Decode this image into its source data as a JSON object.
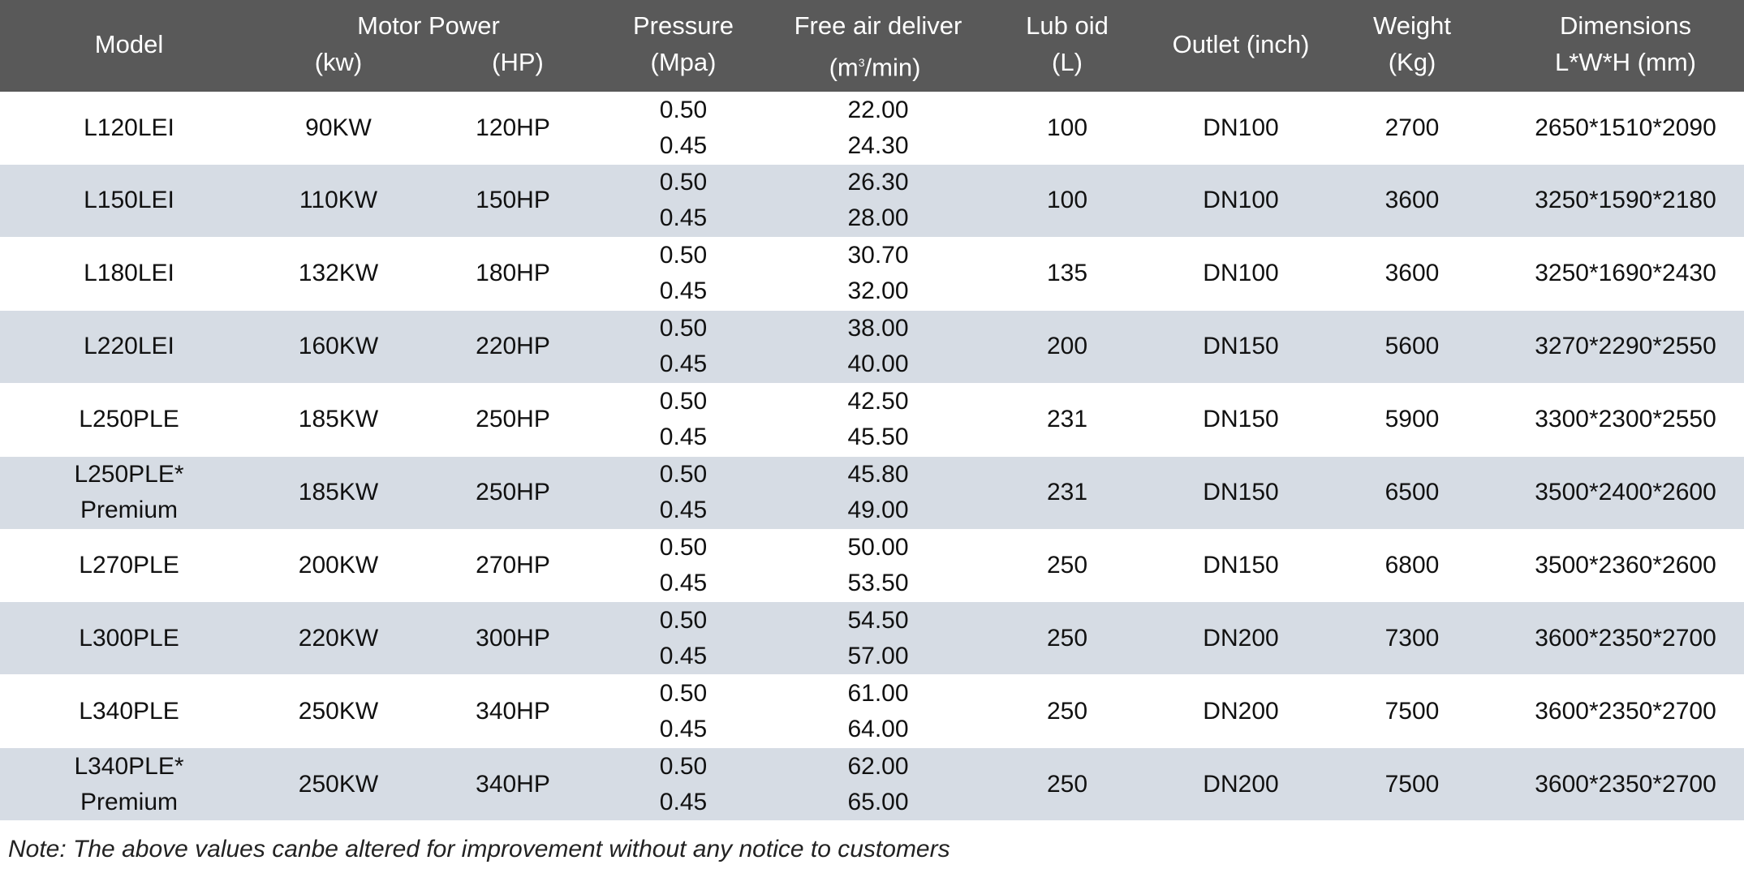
{
  "header": {
    "model": "Model",
    "motor_power": "Motor Power",
    "kw": "(kw)",
    "hp": "(HP)",
    "pressure": "Pressure",
    "pressure_unit": "(Mpa)",
    "free_air": "Free air deliver",
    "free_air_unit_pre": "(m",
    "free_air_unit_sup": "3",
    "free_air_unit_post": "/min)",
    "lub": "Lub oid",
    "lub_unit": "(L)",
    "outlet": "Outlet (inch)",
    "weight": "Weight",
    "weight_unit": "(Kg)",
    "dimensions": "Dimensions",
    "dimensions_unit": "L*W*H (mm)"
  },
  "colors": {
    "header_bg": "#595959",
    "alt_row_bg": "#d6dce4"
  },
  "rows": [
    {
      "model": [
        "L120LEI"
      ],
      "kw": "90KW",
      "hp": "120HP",
      "pressure": [
        "0.50",
        "0.45"
      ],
      "air": [
        "22.00",
        "24.30"
      ],
      "lub": "100",
      "outlet": "DN100",
      "weight": "2700",
      "dims": "2650*1510*2090"
    },
    {
      "model": [
        "L150LEI"
      ],
      "kw": "110KW",
      "hp": "150HP",
      "pressure": [
        "0.50",
        "0.45"
      ],
      "air": [
        "26.30",
        "28.00"
      ],
      "lub": "100",
      "outlet": "DN100",
      "weight": "3600",
      "dims": "3250*1590*2180"
    },
    {
      "model": [
        "L180LEI"
      ],
      "kw": "132KW",
      "hp": "180HP",
      "pressure": [
        "0.50",
        "0.45"
      ],
      "air": [
        "30.70",
        "32.00"
      ],
      "lub": "135",
      "outlet": "DN100",
      "weight": "3600",
      "dims": "3250*1690*2430"
    },
    {
      "model": [
        "L220LEI"
      ],
      "kw": "160KW",
      "hp": "220HP",
      "pressure": [
        "0.50",
        "0.45"
      ],
      "air": [
        "38.00",
        "40.00"
      ],
      "lub": "200",
      "outlet": "DN150",
      "weight": "5600",
      "dims": "3270*2290*2550"
    },
    {
      "model": [
        "L250PLE"
      ],
      "kw": "185KW",
      "hp": "250HP",
      "pressure": [
        "0.50",
        "0.45"
      ],
      "air": [
        "42.50",
        "45.50"
      ],
      "lub": "231",
      "outlet": "DN150",
      "weight": "5900",
      "dims": "3300*2300*2550"
    },
    {
      "model": [
        "L250PLE*",
        "Premium"
      ],
      "kw": "185KW",
      "hp": "250HP",
      "pressure": [
        "0.50",
        "0.45"
      ],
      "air": [
        "45.80",
        "49.00"
      ],
      "lub": "231",
      "outlet": "DN150",
      "weight": "6500",
      "dims": "3500*2400*2600"
    },
    {
      "model": [
        "L270PLE"
      ],
      "kw": "200KW",
      "hp": "270HP",
      "pressure": [
        "0.50",
        "0.45"
      ],
      "air": [
        "50.00",
        "53.50"
      ],
      "lub": "250",
      "outlet": "DN150",
      "weight": "6800",
      "dims": "3500*2360*2600"
    },
    {
      "model": [
        "L300PLE"
      ],
      "kw": "220KW",
      "hp": "300HP",
      "pressure": [
        "0.50",
        "0.45"
      ],
      "air": [
        "54.50",
        "57.00"
      ],
      "lub": "250",
      "outlet": "DN200",
      "weight": "7300",
      "dims": "3600*2350*2700"
    },
    {
      "model": [
        "L340PLE"
      ],
      "kw": "250KW",
      "hp": "340HP",
      "pressure": [
        "0.50",
        "0.45"
      ],
      "air": [
        "61.00",
        "64.00"
      ],
      "lub": "250",
      "outlet": "DN200",
      "weight": "7500",
      "dims": "3600*2350*2700"
    },
    {
      "model": [
        "L340PLE*",
        "Premium"
      ],
      "kw": "250KW",
      "hp": "340HP",
      "pressure": [
        "0.50",
        "0.45"
      ],
      "air": [
        "62.00",
        "65.00"
      ],
      "lub": "250",
      "outlet": "DN200",
      "weight": "7500",
      "dims": "3600*2350*2700"
    }
  ],
  "note": "Note:  The above values canbe altered for improvement without  any notice to customers"
}
